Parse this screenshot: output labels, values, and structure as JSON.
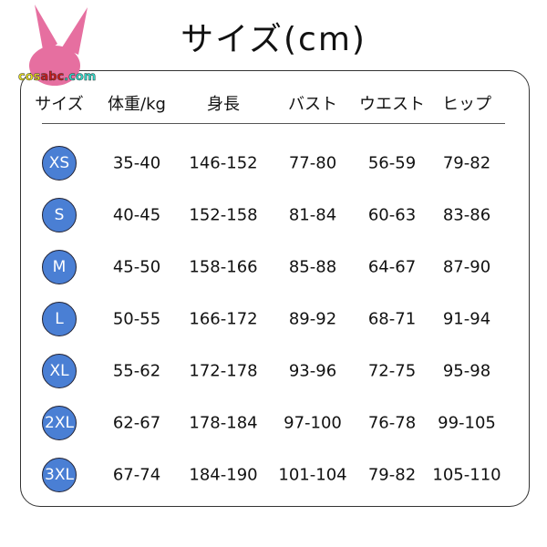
{
  "title": "サイズ(cm)",
  "logo_text": "cosabc.com",
  "badge_color": "#4a7fd4",
  "logo_color": "#e66fa0",
  "headers": [
    "サイズ",
    "体重/kg",
    "身長",
    "バスト",
    "ウエスト",
    "ヒップ"
  ],
  "rows": [
    {
      "size": "XS",
      "weight": "35-40",
      "height": "146-152",
      "bust": "77-80",
      "waist": "56-59",
      "hip": "79-82"
    },
    {
      "size": "S",
      "weight": "40-45",
      "height": "152-158",
      "bust": "81-84",
      "waist": "60-63",
      "hip": "83-86"
    },
    {
      "size": "M",
      "weight": "45-50",
      "height": "158-166",
      "bust": "85-88",
      "waist": "64-67",
      "hip": "87-90"
    },
    {
      "size": "L",
      "weight": "50-55",
      "height": "166-172",
      "bust": "89-92",
      "waist": "68-71",
      "hip": "91-94"
    },
    {
      "size": "XL",
      "weight": "55-62",
      "height": "172-178",
      "bust": "93-96",
      "waist": "72-75",
      "hip": "95-98"
    },
    {
      "size": "2XL",
      "weight": "62-67",
      "height": "178-184",
      "bust": "97-100",
      "waist": "76-78",
      "hip": "99-105"
    },
    {
      "size": "3XL",
      "weight": "67-74",
      "height": "184-190",
      "bust": "101-104",
      "waist": "79-82",
      "hip": "105-110"
    }
  ]
}
